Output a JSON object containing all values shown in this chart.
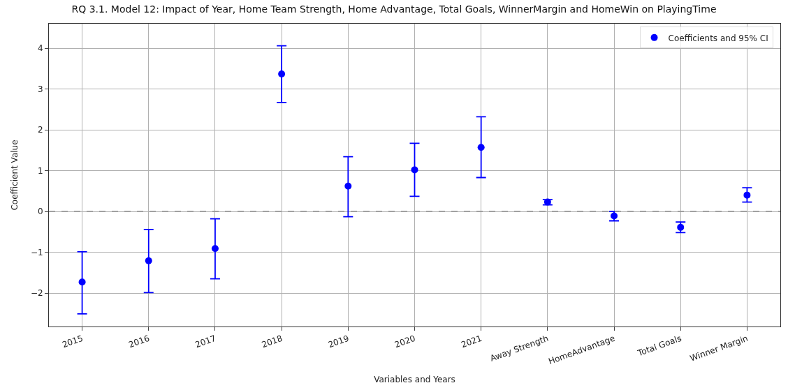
{
  "chart_data": {
    "type": "scatter",
    "title": "RQ 3.1. Model 12: Impact of Year, Home Team Strength, Home Advantage, Total Goals, WinnerMargin and HomeWin on PlayingTime",
    "xlabel": "Variables and Years",
    "ylabel": "Coefficient Value",
    "categories": [
      "2015",
      "2016",
      "2017",
      "2018",
      "2019",
      "2020",
      "2021",
      "Away Strength",
      "HomeAdvantage",
      "Total Goals",
      "Winner Margin"
    ],
    "series": [
      {
        "name": "Coefficients and 95% CI",
        "color": "#0000ff",
        "values": [
          -1.73,
          -1.21,
          -0.91,
          3.37,
          0.62,
          1.02,
          1.57,
          0.23,
          -0.11,
          -0.39,
          0.4
        ],
        "errors": [
          [
            -2.51,
            -0.99
          ],
          [
            -1.99,
            -0.44
          ],
          [
            -1.65,
            -0.18
          ],
          [
            2.67,
            4.06
          ],
          [
            -0.13,
            1.34
          ],
          [
            0.37,
            1.67
          ],
          [
            0.83,
            2.32
          ],
          [
            0.16,
            0.29
          ],
          [
            -0.23,
            0.0
          ],
          [
            -0.52,
            -0.26
          ],
          [
            0.23,
            0.58
          ]
        ]
      }
    ],
    "ylim": [
      -2.82,
      4.6
    ],
    "yticks": [
      {
        "value": -2,
        "label": "−2"
      },
      {
        "value": -1,
        "label": "−1"
      },
      0,
      1,
      2,
      3,
      4
    ],
    "ref_lines": [
      {
        "axis": "y",
        "value": 0,
        "label": null,
        "color": "#999999",
        "line_style": "dashed"
      }
    ],
    "grid": true,
    "legend": "top right",
    "marker": "circle"
  }
}
